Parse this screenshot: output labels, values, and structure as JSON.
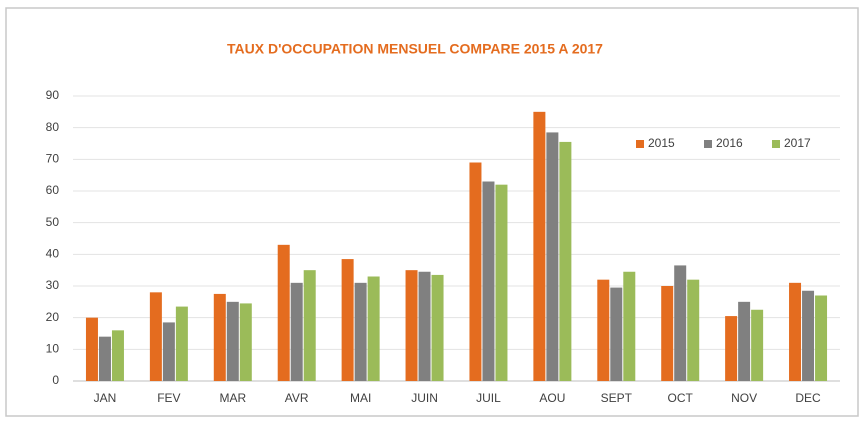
{
  "chart_data": {
    "type": "bar",
    "title": "TAUX D'OCCUPATION MENSUEL COMPARE 2015 A 2017",
    "categories": [
      "JAN",
      "FEV",
      "MAR",
      "AVR",
      "MAI",
      "JUIN",
      "JUIL",
      "AOU",
      "SEPT",
      "OCT",
      "NOV",
      "DEC"
    ],
    "series": [
      {
        "name": "2015",
        "color": "#e46c1f",
        "values": [
          20,
          28,
          27.5,
          43,
          38.5,
          35,
          69,
          85,
          32,
          30,
          20.5,
          31
        ]
      },
      {
        "name": "2016",
        "color": "#808080",
        "values": [
          14,
          18.5,
          25,
          31,
          31,
          34.5,
          63,
          78.5,
          29.5,
          36.5,
          25,
          28.5
        ]
      },
      {
        "name": "2017",
        "color": "#9bbb59",
        "values": [
          16,
          23.5,
          24.5,
          35,
          33,
          33.5,
          62,
          75.5,
          34.5,
          32,
          22.5,
          27
        ]
      }
    ],
    "ylim": [
      0,
      90
    ],
    "yticks": [
      0,
      10,
      20,
      30,
      40,
      50,
      60,
      70,
      80,
      90
    ],
    "grid": true,
    "legend": "upper right"
  }
}
